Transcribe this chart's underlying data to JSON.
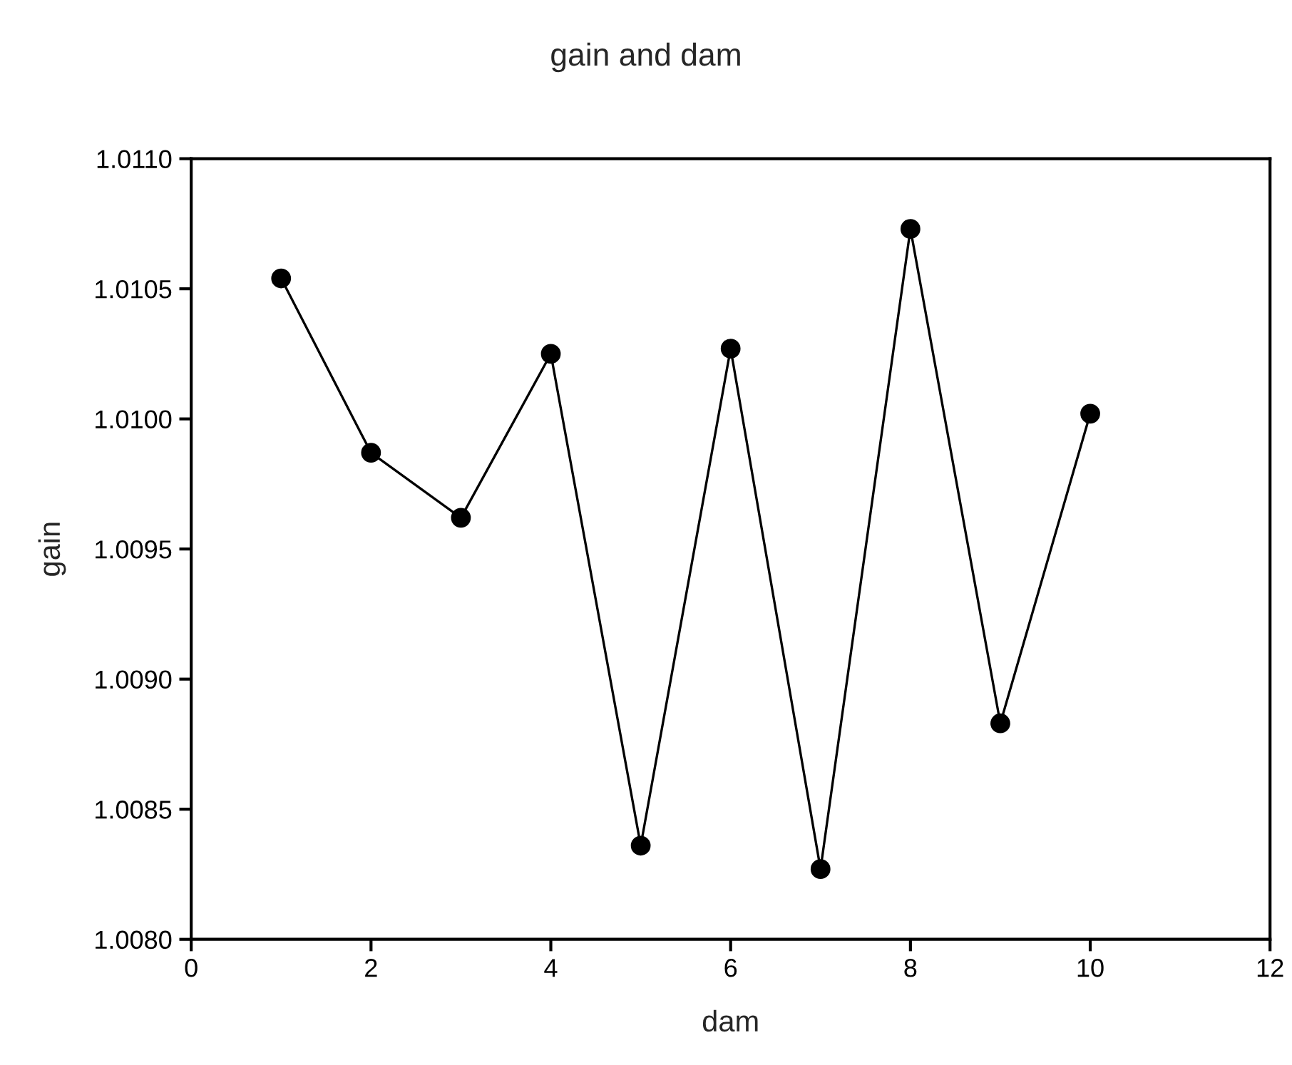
{
  "chart_data": {
    "type": "line",
    "title": "gain and dam",
    "xlabel": "dam",
    "ylabel": "gain",
    "x": [
      1,
      2,
      3,
      4,
      5,
      6,
      7,
      8,
      9,
      10
    ],
    "series": [
      {
        "color": "#000000",
        "values": [
          1.01054,
          1.00987,
          1.00962,
          1.01025,
          1.00836,
          1.01027,
          1.00827,
          1.01073,
          1.00883,
          1.01002
        ]
      }
    ],
    "xlim": [
      0,
      12
    ],
    "xticks": [
      0,
      2,
      4,
      6,
      8,
      10,
      12
    ],
    "ylim": [
      1.008,
      1.011
    ],
    "yticks": [
      {
        "value": 1.008,
        "label": "1.0080"
      },
      {
        "value": 1.0085,
        "label": "1.0085"
      },
      {
        "value": 1.009,
        "label": "1.0090"
      },
      {
        "value": 1.0095,
        "label": "1.0095"
      },
      {
        "value": 1.01,
        "label": "1.0100"
      },
      {
        "value": 1.0105,
        "label": "1.0105"
      },
      {
        "value": 1.011,
        "label": "1.0110"
      }
    ],
    "marker": "circle",
    "line_style": "solid",
    "grid": false
  }
}
